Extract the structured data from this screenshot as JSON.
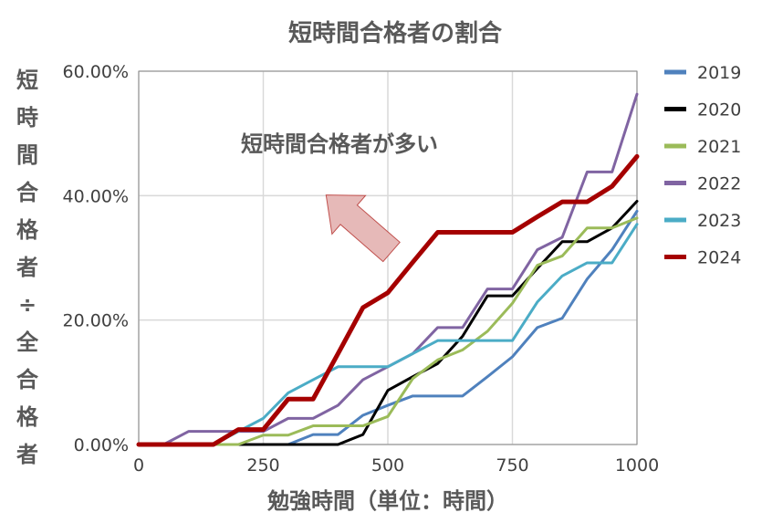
{
  "chart_data": {
    "type": "line",
    "title": "短時間合格者の割合",
    "xlabel": "勉強時間（単位：時間）",
    "ylabel": "短時間合格者÷全合格者",
    "annotation": "短時間合格者が多い",
    "x_ticks": [
      "0",
      "250",
      "500",
      "750",
      "1000"
    ],
    "y_ticks": [
      "0.00%",
      "20.00%",
      "40.00%",
      "60.00%"
    ],
    "xlim": [
      0,
      1000
    ],
    "ylim": [
      0,
      60
    ],
    "grid": true,
    "legend_position": "right",
    "x": [
      0,
      50,
      100,
      150,
      200,
      250,
      300,
      350,
      400,
      450,
      500,
      550,
      600,
      650,
      700,
      750,
      800,
      850,
      900,
      950,
      1000
    ],
    "series": [
      {
        "name": "2019",
        "color": "#4f81bd",
        "width": 3,
        "values": [
          0,
          0,
          0,
          0,
          0,
          0,
          0,
          1.6,
          1.6,
          4.7,
          6.3,
          7.8,
          7.8,
          7.8,
          10.9,
          14.1,
          18.8,
          20.3,
          26.6,
          31.3,
          37.5
        ]
      },
      {
        "name": "2020",
        "color": "#000000",
        "width": 3,
        "values": [
          0,
          0,
          0,
          0,
          0,
          0,
          0,
          0,
          0,
          1.6,
          8.7,
          10.9,
          13.0,
          17.4,
          23.9,
          23.9,
          28.3,
          32.6,
          32.6,
          34.8,
          39.1
        ]
      },
      {
        "name": "2021",
        "color": "#9bbb59",
        "width": 3,
        "values": [
          0,
          0,
          0,
          0,
          0,
          1.5,
          1.5,
          3.0,
          3.0,
          3.0,
          4.5,
          10.6,
          13.6,
          15.2,
          18.2,
          22.7,
          28.8,
          30.3,
          34.8,
          34.8,
          36.4
        ]
      },
      {
        "name": "2022",
        "color": "#8064a2",
        "width": 3,
        "values": [
          0,
          0,
          2.1,
          2.1,
          2.1,
          2.1,
          4.2,
          4.2,
          6.3,
          10.4,
          12.5,
          14.6,
          18.8,
          18.8,
          25.0,
          25.0,
          31.3,
          33.3,
          43.8,
          43.8,
          56.3
        ]
      },
      {
        "name": "2023",
        "color": "#4bacc6",
        "width": 3,
        "values": [
          0,
          0,
          0,
          0,
          2.1,
          4.2,
          8.3,
          10.4,
          12.5,
          12.5,
          12.5,
          14.6,
          16.7,
          16.7,
          16.7,
          16.7,
          22.9,
          27.1,
          29.2,
          29.2,
          35.4
        ]
      },
      {
        "name": "2024",
        "color": "#a50000",
        "width": 5,
        "values": [
          0,
          0,
          0,
          0,
          2.4,
          2.4,
          7.3,
          7.3,
          14.6,
          22.0,
          24.4,
          29.3,
          34.1,
          34.1,
          34.1,
          34.1,
          36.6,
          39.0,
          39.0,
          41.5,
          46.3
        ]
      }
    ]
  }
}
